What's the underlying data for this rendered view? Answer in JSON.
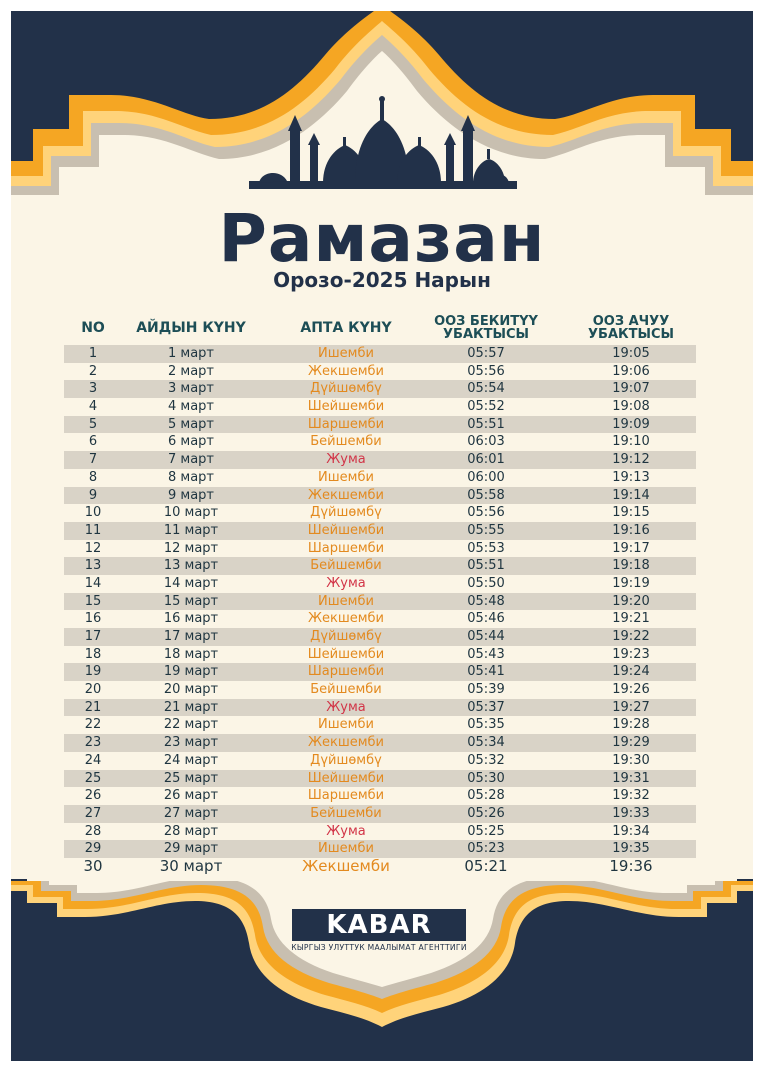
{
  "header": {
    "title": "Рамазан",
    "subtitle": "Орозо-2025 Нарын"
  },
  "columns": {
    "no": "NO",
    "date": "АЙДЫН КҮНҮ",
    "weekday": "АПТА КҮНҮ",
    "fast_start_line1": "ООЗ БЕКИТҮҮ",
    "fast_start_line2": "УБАКТЫСЫ",
    "fast_break_line1": "ООЗ АЧУУ",
    "fast_break_line2": "УБАКТЫСЫ"
  },
  "rows": [
    {
      "no": "1",
      "date": "1 март",
      "weekday": "Ишемби",
      "fast_start": "05:57",
      "fast_break": "19:05"
    },
    {
      "no": "2",
      "date": "2 март",
      "weekday": "Жекшемби",
      "fast_start": "05:56",
      "fast_break": "19:06"
    },
    {
      "no": "3",
      "date": "3 март",
      "weekday": "Дүйшөмбү",
      "fast_start": "05:54",
      "fast_break": "19:07"
    },
    {
      "no": "4",
      "date": "4 март",
      "weekday": "Шейшемби",
      "fast_start": "05:52",
      "fast_break": "19:08"
    },
    {
      "no": "5",
      "date": "5 март",
      "weekday": "Шаршемби",
      "fast_start": "05:51",
      "fast_break": "19:09"
    },
    {
      "no": "6",
      "date": "6 март",
      "weekday": "Бейшемби",
      "fast_start": "06:03",
      "fast_break": "19:10"
    },
    {
      "no": "7",
      "date": "7 март",
      "weekday": "Жума",
      "fast_start": "06:01",
      "fast_break": "19:12"
    },
    {
      "no": "8",
      "date": "8 март",
      "weekday": "Ишемби",
      "fast_start": "06:00",
      "fast_break": "19:13"
    },
    {
      "no": "9",
      "date": "9 март",
      "weekday": "Жекшемби",
      "fast_start": "05:58",
      "fast_break": "19:14"
    },
    {
      "no": "10",
      "date": "10 март",
      "weekday": "Дүйшөмбү",
      "fast_start": "05:56",
      "fast_break": "19:15"
    },
    {
      "no": "11",
      "date": "11 март",
      "weekday": "Шейшемби",
      "fast_start": "05:55",
      "fast_break": "19:16"
    },
    {
      "no": "12",
      "date": "12 март",
      "weekday": "Шаршемби",
      "fast_start": "05:53",
      "fast_break": "19:17"
    },
    {
      "no": "13",
      "date": "13 март",
      "weekday": "Бейшемби",
      "fast_start": "05:51",
      "fast_break": "19:18"
    },
    {
      "no": "14",
      "date": "14 март",
      "weekday": "Жума",
      "fast_start": "05:50",
      "fast_break": "19:19"
    },
    {
      "no": "15",
      "date": "15 март",
      "weekday": "Ишемби",
      "fast_start": "05:48",
      "fast_break": "19:20"
    },
    {
      "no": "16",
      "date": "16 март",
      "weekday": "Жекшемби",
      "fast_start": "05:46",
      "fast_break": "19:21"
    },
    {
      "no": "17",
      "date": "17 март",
      "weekday": "Дүйшөмбү",
      "fast_start": "05:44",
      "fast_break": "19:22"
    },
    {
      "no": "18",
      "date": "18 март",
      "weekday": "Шейшемби",
      "fast_start": "05:43",
      "fast_break": "19:23"
    },
    {
      "no": "19",
      "date": "19 март",
      "weekday": "Шаршемби",
      "fast_start": "05:41",
      "fast_break": "19:24"
    },
    {
      "no": "20",
      "date": "20 март",
      "weekday": "Бейшемби",
      "fast_start": "05:39",
      "fast_break": "19:26"
    },
    {
      "no": "21",
      "date": "21 март",
      "weekday": "Жума",
      "fast_start": "05:37",
      "fast_break": "19:27"
    },
    {
      "no": "22",
      "date": "22 март",
      "weekday": "Ишемби",
      "fast_start": "05:35",
      "fast_break": "19:28"
    },
    {
      "no": "23",
      "date": "23 март",
      "weekday": "Жекшемби",
      "fast_start": "05:34",
      "fast_break": "19:29"
    },
    {
      "no": "24",
      "date": "24 март",
      "weekday": "Дүйшөмбү",
      "fast_start": "05:32",
      "fast_break": "19:30"
    },
    {
      "no": "25",
      "date": "25 март",
      "weekday": "Шейшемби",
      "fast_start": "05:30",
      "fast_break": "19:31"
    },
    {
      "no": "26",
      "date": "26 март",
      "weekday": "Шаршемби",
      "fast_start": "05:28",
      "fast_break": "19:32"
    },
    {
      "no": "27",
      "date": "27 март",
      "weekday": "Бейшемби",
      "fast_start": "05:26",
      "fast_break": "19:33"
    },
    {
      "no": "28",
      "date": "28 март",
      "weekday": "Жума",
      "fast_start": "05:25",
      "fast_break": "19:34"
    },
    {
      "no": "29",
      "date": "29 март",
      "weekday": "Ишемби",
      "fast_start": "05:23",
      "fast_break": "19:35"
    },
    {
      "no": "30",
      "date": "30 март",
      "weekday": "Жекшемби",
      "fast_start": "05:21",
      "fast_break": "19:36"
    }
  ],
  "footer": {
    "logo_text": "KABAR",
    "logo_subtitle": "КЫРГЫЗ УЛУТТУК МААЛЫМАТ АГЕНТТИГИ"
  },
  "icons": [
    "mosque-silhouette-icon"
  ],
  "colors": {
    "navy": "#223149",
    "cream": "#fbf5e6",
    "orange": "#f5a623",
    "weekday_orange": "#e38a1f",
    "friday_red": "#d23548",
    "header_teal": "#1d4e56",
    "row_shade": "#d9d3c7"
  }
}
